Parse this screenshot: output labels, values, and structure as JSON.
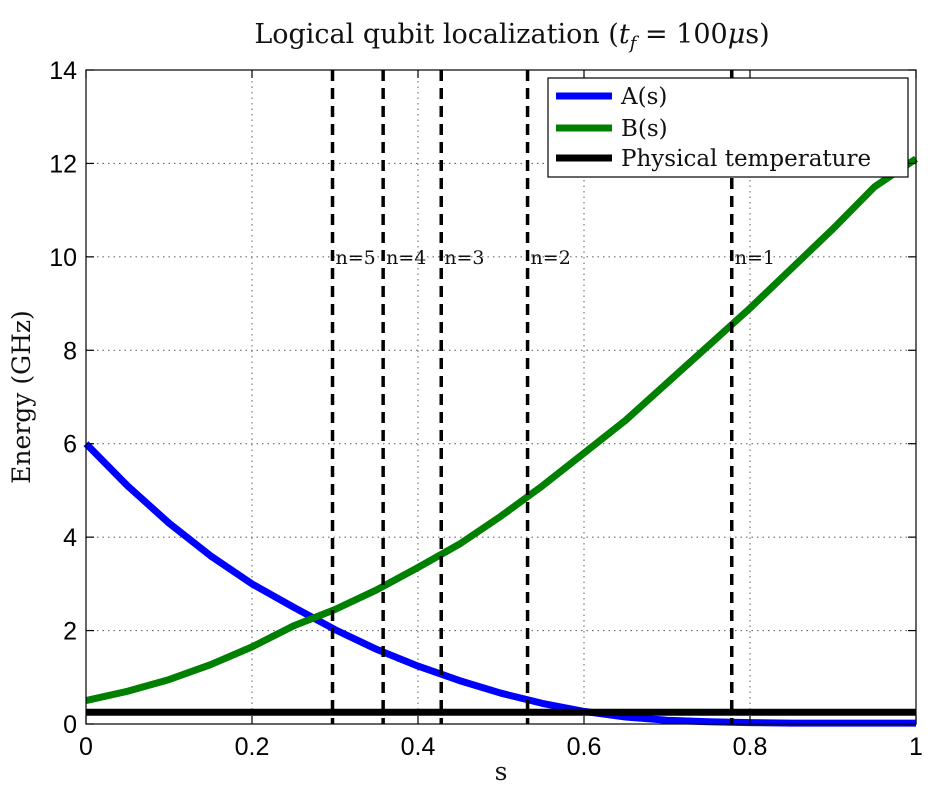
{
  "chart_data": {
    "type": "line",
    "title": "Logical qubit localization (t_f = 100μs)",
    "title_text": "Logical qubit localization (",
    "title_math_var": "t",
    "title_math_sub": "f",
    "title_math_rest": " = 100",
    "title_math_unit": "μ",
    "title_tail": "s)",
    "xlabel": "s",
    "ylabel": "Energy (GHz)",
    "xlim": [
      0,
      1
    ],
    "ylim": [
      0,
      14
    ],
    "xticks": [
      0,
      0.2,
      0.4,
      0.6,
      0.8,
      1
    ],
    "xtick_labels": [
      "0",
      "0.2",
      "0.4",
      "0.6",
      "0.8",
      "1"
    ],
    "yticks": [
      0,
      2,
      4,
      6,
      8,
      10,
      12,
      14
    ],
    "ytick_labels": [
      "0",
      "2",
      "4",
      "6",
      "8",
      "10",
      "12",
      "14"
    ],
    "grid": true,
    "legend_position": "top-right",
    "series": [
      {
        "name": "A(s)",
        "color": "#0000ff",
        "x": [
          0,
          0.05,
          0.1,
          0.15,
          0.2,
          0.25,
          0.3,
          0.35,
          0.4,
          0.45,
          0.5,
          0.55,
          0.6,
          0.65,
          0.7,
          0.75,
          0.8,
          0.85,
          0.9,
          0.95,
          1
        ],
        "y": [
          6.0,
          5.1,
          4.3,
          3.6,
          3.0,
          2.5,
          2.02,
          1.6,
          1.24,
          0.93,
          0.66,
          0.44,
          0.27,
          0.15,
          0.08,
          0.05,
          0.03,
          0.02,
          0.02,
          0.02,
          0.02
        ]
      },
      {
        "name": "B(s)",
        "color": "#008000",
        "x": [
          0,
          0.05,
          0.1,
          0.15,
          0.2,
          0.25,
          0.3,
          0.35,
          0.4,
          0.45,
          0.5,
          0.55,
          0.6,
          0.65,
          0.7,
          0.75,
          0.8,
          0.85,
          0.9,
          0.95,
          1
        ],
        "y": [
          0.5,
          0.7,
          0.95,
          1.27,
          1.65,
          2.1,
          2.45,
          2.87,
          3.35,
          3.85,
          4.45,
          5.1,
          5.8,
          6.5,
          7.3,
          8.1,
          8.9,
          9.75,
          10.6,
          11.5,
          12.1
        ]
      },
      {
        "name": "Physical temperature",
        "color": "#000000",
        "x": [
          0,
          1
        ],
        "y": [
          0.25,
          0.25
        ]
      }
    ],
    "vertical_lines": [
      {
        "x": 0.297,
        "label": "n=5"
      },
      {
        "x": 0.358,
        "label": "n=4"
      },
      {
        "x": 0.428,
        "label": "n=3"
      },
      {
        "x": 0.532,
        "label": "n=2"
      },
      {
        "x": 0.778,
        "label": "n=1"
      }
    ],
    "vertical_label_y": 10
  }
}
